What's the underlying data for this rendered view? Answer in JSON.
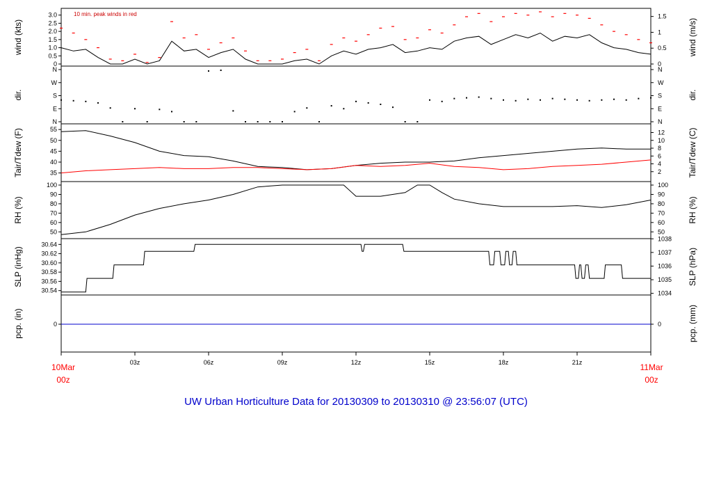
{
  "title": "UW Urban Horticulture Data for 20130309  to  20130310 @ 23:56:07  (UTC)",
  "annotation": "10 min. peak winds in red",
  "colors": {
    "line": "#000000",
    "peak": "#ff0000",
    "dew": "#ff0000",
    "pcp": "#0000cc",
    "title": "#0000cc",
    "date": "#ff0000"
  },
  "x_axis": {
    "start_label": [
      "10Mar",
      "00z"
    ],
    "end_label": [
      "11Mar",
      "00z"
    ],
    "ticks": [
      "03z",
      "06z",
      "09z",
      "12z",
      "15z",
      "18z",
      "21z"
    ]
  },
  "chart_data": [
    {
      "type": "line",
      "panel": "wind",
      "ylabel_left": "wind (kts)",
      "ylabel_right": "wind (m/s)",
      "ylim": [
        0,
        3.2
      ],
      "left_ticks": [
        "0",
        "0.5",
        "1.0",
        "1.5",
        "2.0",
        "2.5",
        "3.0"
      ],
      "right_ticks": [
        "0",
        "0.5",
        "1",
        "1.5"
      ],
      "series": [
        {
          "name": "wind",
          "x": [
            0,
            0.5,
            1,
            1.5,
            2,
            2.5,
            3,
            3.5,
            4,
            4.5,
            5,
            5.5,
            6,
            6.5,
            7,
            7.5,
            8,
            8.5,
            9,
            9.5,
            10,
            10.5,
            11,
            11.5,
            12,
            12.5,
            13,
            13.5,
            14,
            14.5,
            15,
            15.5,
            16,
            16.5,
            17,
            17.5,
            18,
            18.5,
            19,
            19.5,
            20,
            20.5,
            21,
            21.5,
            22,
            22.5,
            23,
            23.5,
            24
          ],
          "y": [
            1.0,
            0.8,
            0.9,
            0.4,
            0,
            0,
            0.3,
            0,
            0.2,
            1.4,
            0.8,
            0.9,
            0.4,
            0.7,
            0.9,
            0.3,
            0,
            0,
            0,
            0.2,
            0.3,
            0,
            0.5,
            0.8,
            0.6,
            0.9,
            1.0,
            1.2,
            0.7,
            0.8,
            1.0,
            0.9,
            1.4,
            1.6,
            1.7,
            1.2,
            1.5,
            1.8,
            1.6,
            1.9,
            1.4,
            1.7,
            1.6,
            1.8,
            1.3,
            1.0,
            0.9,
            0.7,
            0.6
          ]
        },
        {
          "name": "10 min. peak winds",
          "x": [
            0,
            0.5,
            1,
            1.5,
            2,
            2.5,
            3,
            3.5,
            4,
            4.5,
            5,
            5.5,
            6,
            6.5,
            7,
            7.5,
            8,
            8.5,
            9,
            9.5,
            10,
            10.5,
            11,
            11.5,
            12,
            12.5,
            13,
            13.5,
            14,
            14.5,
            15,
            15.5,
            16,
            16.5,
            17,
            17.5,
            18,
            18.5,
            19,
            19.5,
            20,
            20.5,
            21,
            21.5,
            22,
            22.5,
            23,
            23.5,
            24
          ],
          "y": [
            2.2,
            1.9,
            1.5,
            1.0,
            0.3,
            0.2,
            0.6,
            0.1,
            0.4,
            2.6,
            1.6,
            1.8,
            0.9,
            1.3,
            1.6,
            0.8,
            0.2,
            0.2,
            0.3,
            0.7,
            0.9,
            0.2,
            1.2,
            1.6,
            1.4,
            1.8,
            2.2,
            2.3,
            1.5,
            1.6,
            2.1,
            1.9,
            2.4,
            2.9,
            3.1,
            2.6,
            2.9,
            3.1,
            3.0,
            3.2,
            2.9,
            3.1,
            3.0,
            2.8,
            2.4,
            2.0,
            1.8,
            1.5,
            1.3
          ]
        }
      ]
    },
    {
      "type": "scatter",
      "panel": "dir",
      "ylabel_left": "dir.",
      "ylabel_right": "dir.",
      "ylim": [
        0,
        360
      ],
      "left_ticks": [
        "N",
        "E",
        "S",
        "W",
        "N"
      ],
      "right_ticks": [
        "N",
        "E",
        "S",
        "W",
        "N"
      ],
      "x": [
        0,
        0.5,
        1,
        1.5,
        2,
        2.5,
        3,
        3.5,
        4,
        4.5,
        5,
        5.5,
        6,
        6.5,
        7,
        7.5,
        8,
        8.5,
        9,
        9.5,
        10,
        10.5,
        11,
        11.5,
        12,
        12.5,
        13,
        13.5,
        14,
        14.5,
        15,
        15.5,
        16,
        16.5,
        17,
        17.5,
        18,
        18.5,
        19,
        19.5,
        20,
        20.5,
        21,
        21.5,
        22,
        22.5,
        23,
        23.5,
        24
      ],
      "y": [
        150,
        145,
        140,
        130,
        95,
        0,
        90,
        0,
        85,
        70,
        0,
        0,
        350,
        355,
        75,
        0,
        0,
        0,
        0,
        70,
        95,
        0,
        110,
        90,
        140,
        130,
        120,
        100,
        0,
        0,
        150,
        140,
        160,
        165,
        170,
        160,
        150,
        145,
        155,
        150,
        160,
        155,
        150,
        145,
        150,
        155,
        150,
        160,
        165
      ]
    },
    {
      "type": "line",
      "panel": "temp",
      "ylabel_left": "Tair/Tdew (F)",
      "ylabel_right": "Tair/Tdew (C)",
      "ylim": [
        32,
        56
      ],
      "left_ticks": [
        "35",
        "40",
        "45",
        "50",
        "55"
      ],
      "right_ticks": [
        "2",
        "4",
        "6",
        "8",
        "10",
        "12"
      ],
      "series": [
        {
          "name": "Tair",
          "x": [
            0,
            1,
            2,
            3,
            4,
            5,
            6,
            7,
            8,
            9,
            10,
            11,
            12,
            13,
            14,
            15,
            16,
            17,
            18,
            19,
            20,
            21,
            22,
            23,
            24
          ],
          "y": [
            54,
            54.5,
            52,
            49,
            45,
            43,
            42.5,
            40.5,
            38,
            37.5,
            36.5,
            37,
            38.5,
            39.5,
            40,
            40,
            40.5,
            42,
            43,
            44,
            45,
            46,
            46.5,
            46,
            46
          ]
        },
        {
          "name": "Tdew",
          "x": [
            0,
            1,
            2,
            3,
            4,
            5,
            6,
            7,
            8,
            9,
            10,
            11,
            12,
            13,
            14,
            15,
            16,
            17,
            18,
            19,
            20,
            21,
            22,
            23,
            24
          ],
          "y": [
            35,
            36,
            36.5,
            37,
            37.5,
            37,
            37,
            37.5,
            37.5,
            37,
            36.5,
            37,
            38.5,
            38,
            38.5,
            39.5,
            38,
            37.5,
            36.5,
            37,
            38,
            38.5,
            39,
            40,
            41
          ]
        }
      ]
    },
    {
      "type": "line",
      "panel": "rh",
      "ylabel_left": "RH (%)",
      "ylabel_right": "RH (%)",
      "ylim": [
        45,
        100
      ],
      "left_ticks": [
        "50",
        "60",
        "70",
        "80",
        "90",
        "100"
      ],
      "right_ticks": [
        "50",
        "60",
        "70",
        "80",
        "90",
        "100"
      ],
      "x": [
        0,
        1,
        2,
        3,
        4,
        5,
        6,
        7,
        8,
        9,
        10,
        11,
        11.5,
        12,
        13,
        14,
        14.5,
        15,
        15.5,
        16,
        17,
        18,
        19,
        20,
        21,
        22,
        23,
        24
      ],
      "y": [
        47,
        50,
        58,
        68,
        75,
        80,
        84,
        90,
        98,
        100,
        100,
        100,
        100,
        88,
        88,
        92,
        100,
        100,
        92,
        85,
        80,
        77,
        77,
        77,
        78,
        76,
        79,
        84
      ]
    },
    {
      "type": "line",
      "panel": "slp",
      "ylabel_left": "SLP (inHg)",
      "ylabel_right": "SLP (hPa)",
      "ylim": [
        30.535,
        30.645
      ],
      "left_ticks": [
        "30.54",
        "30.56",
        "30.58",
        "30.60",
        "30.62",
        "30.64"
      ],
      "right_ticks": [
        "1034",
        "1035",
        "1036",
        "1037",
        "1038"
      ],
      "x": [
        0,
        1,
        1.05,
        2.1,
        2.15,
        3.35,
        3.4,
        5.4,
        5.45,
        12.2,
        12.25,
        12.3,
        12.35,
        13.9,
        13.95,
        17.4,
        17.45,
        17.6,
        17.65,
        17.85,
        17.9,
        18.05,
        18.1,
        18.2,
        18.25,
        18.35,
        18.4,
        18.5,
        18.55,
        18.75,
        18.8,
        20.9,
        20.95,
        21.05,
        21.1,
        21.15,
        21.2,
        21.3,
        21.35,
        21.45,
        21.5,
        22.1,
        22.15,
        22.2,
        22.25,
        22.8,
        22.85,
        24
      ],
      "y": [
        30.537,
        30.537,
        30.5665,
        30.5665,
        30.5955,
        30.5955,
        30.625,
        30.625,
        30.64,
        30.64,
        30.625,
        30.625,
        30.64,
        30.64,
        30.625,
        30.625,
        30.5955,
        30.5955,
        30.625,
        30.625,
        30.5955,
        30.5955,
        30.625,
        30.625,
        30.5955,
        30.5955,
        30.625,
        30.625,
        30.5955,
        30.5955,
        30.5955,
        30.5955,
        30.5665,
        30.5665,
        30.5955,
        30.5955,
        30.5665,
        30.5665,
        30.5955,
        30.5955,
        30.5665,
        30.5665,
        30.5955,
        30.5955,
        30.5955,
        30.5955,
        30.5665,
        30.5665
      ]
    },
    {
      "type": "line",
      "panel": "pcp",
      "ylabel_left": "pcp. (in)",
      "ylabel_right": "pcp. (mm)",
      "ylim": [
        -1,
        1
      ],
      "left_ticks": [
        "0"
      ],
      "right_ticks": [
        "0"
      ],
      "x": [
        0,
        24
      ],
      "y": [
        0,
        0
      ]
    }
  ]
}
